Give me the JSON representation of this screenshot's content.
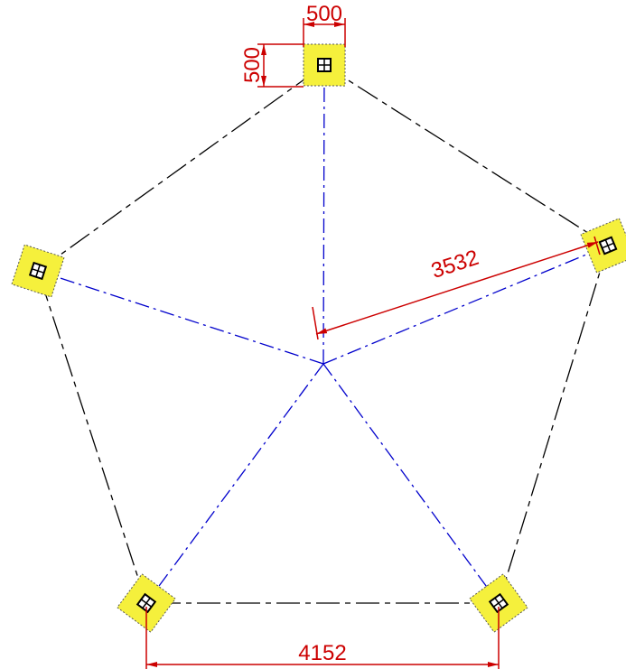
{
  "dimensions": {
    "top_width": "500",
    "top_height": "500",
    "radius": "3532",
    "bottom_span": "4152"
  }
}
